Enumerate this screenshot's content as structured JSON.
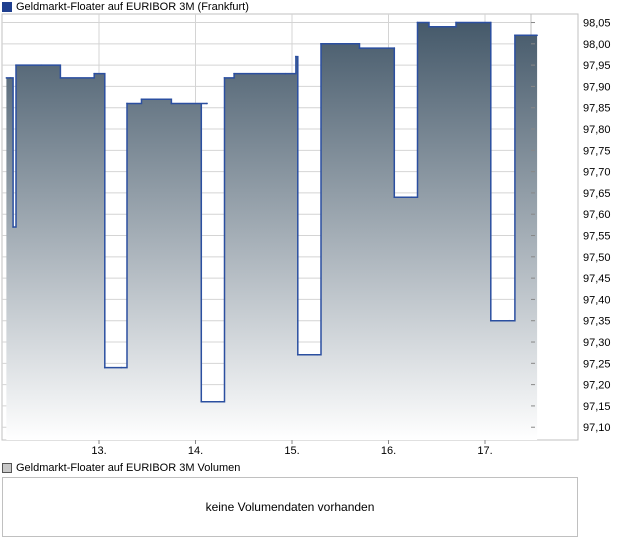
{
  "chart_data": {
    "type": "area",
    "legend": "Geldmarkt-Floater auf EURIBOR 3M (Frankfurt)",
    "x_ticks": [
      "13.",
      "14.",
      "15.",
      "16.",
      "17."
    ],
    "ylim": [
      97.07,
      98.07
    ],
    "y_ticks": [
      "98,05",
      "98,00",
      "97,95",
      "97,90",
      "97,85",
      "97,80",
      "97,75",
      "97,70",
      "97,65",
      "97,60",
      "97,55",
      "97,50",
      "97,45",
      "97,40",
      "97,35",
      "97,30",
      "97,25",
      "97,20",
      "97,15",
      "97,10"
    ],
    "y_tick_values": [
      98.05,
      98.0,
      97.95,
      97.9,
      97.85,
      97.8,
      97.75,
      97.7,
      97.65,
      97.6,
      97.55,
      97.5,
      97.45,
      97.4,
      97.35,
      97.3,
      97.25,
      97.2,
      97.15,
      97.1
    ],
    "x_range": [
      12.04,
      17.54
    ],
    "grid": true,
    "series": [
      {
        "name": "Geldmarkt-Floater auf EURIBOR 3M (Frankfurt)",
        "segments": [
          {
            "x": [
              12.04,
              12.08,
              12.11,
              12.14,
              12.4,
              12.6,
              12.95
            ],
            "y": [
              97.92,
              97.92,
              97.57,
              97.95,
              97.95,
              97.92,
              97.93
            ]
          },
          {
            "x": [
              13.06,
              13.23
            ],
            "y": [
              97.24,
              97.24
            ]
          },
          {
            "x": [
              13.29,
              13.44,
              13.75,
              14.12
            ],
            "y": [
              97.86,
              97.87,
              97.86,
              97.86
            ]
          },
          {
            "x": [
              14.06,
              14.25
            ],
            "y": [
              97.16,
              97.16
            ]
          },
          {
            "x": [
              14.3,
              14.4,
              14.93,
              15.04
            ],
            "y": [
              97.92,
              97.93,
              97.93,
              97.97
            ]
          },
          {
            "x": [
              15.06,
              15.26
            ],
            "y": [
              97.27,
              97.27
            ]
          },
          {
            "x": [
              15.3,
              15.7,
              16.06
            ],
            "y": [
              98.0,
              97.99,
              97.99
            ]
          },
          {
            "x": [
              16.06,
              16.24
            ],
            "y": [
              97.64,
              97.64
            ]
          },
          {
            "x": [
              16.3,
              16.42,
              16.7,
              17.06
            ],
            "y": [
              98.05,
              98.04,
              98.05,
              98.05
            ]
          },
          {
            "x": [
              17.06,
              17.25
            ],
            "y": [
              97.35,
              97.35
            ]
          },
          {
            "x": [
              17.31,
              17.54
            ],
            "y": [
              98.02,
              98.02
            ]
          }
        ]
      }
    ],
    "colors": {
      "line": "#2b4fa0",
      "fill_top": "#45596a",
      "fill_bottom": "#ffffff",
      "grid": "#d4d4d4"
    }
  },
  "volume": {
    "legend": "Geldmarkt-Floater auf EURIBOR 3M Volumen",
    "message": "keine Volumendaten vorhanden"
  }
}
